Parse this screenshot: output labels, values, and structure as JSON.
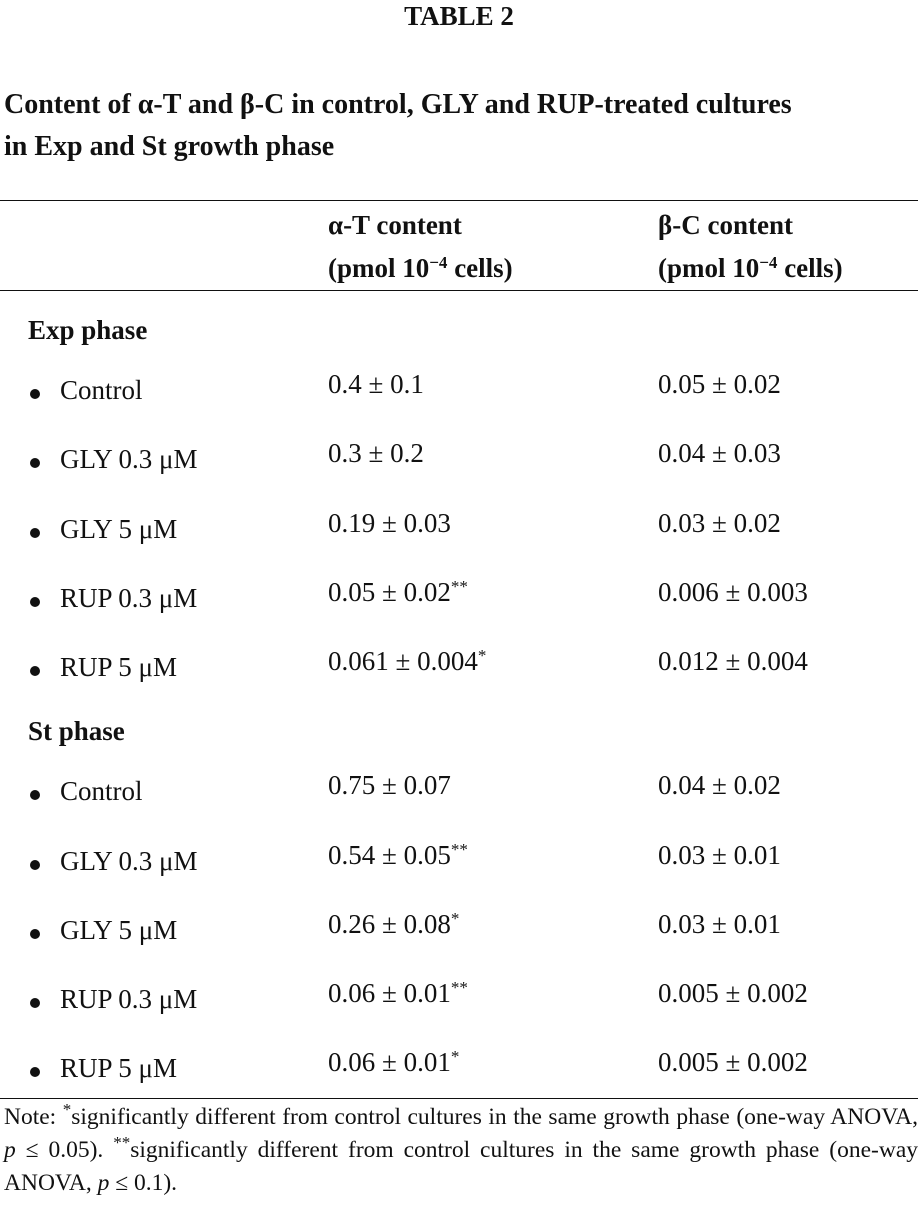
{
  "header": {
    "title": "TABLE 2",
    "caption": [
      "Content of α-T and β-C in control, GLY and RUP-treated cultures",
      "in Exp and St growth phase"
    ]
  },
  "table": {
    "columns": [
      {
        "label": "α-T content",
        "unit_pre": "(pmol 10",
        "unit_sup": "−4",
        "unit_post": " cells)"
      },
      {
        "label": "β-C content",
        "unit_pre": "(pmol 10",
        "unit_sup": "−4",
        "unit_post": " cells)"
      }
    ],
    "sections": [
      {
        "title": "Exp phase",
        "rows": [
          {
            "label": "Control",
            "values": [
              {
                "text": "0.4 ± 0.1"
              },
              {
                "text": "0.05 ± 0.02"
              }
            ]
          },
          {
            "label": "GLY 0.3 μM",
            "values": [
              {
                "text": "0.3 ± 0.2"
              },
              {
                "text": "0.04 ± 0.03"
              }
            ]
          },
          {
            "label": "GLY 5 μM",
            "values": [
              {
                "text": "0.19 ± 0.03"
              },
              {
                "text": "0.03 ± 0.02"
              }
            ]
          },
          {
            "label": "RUP 0.3 μM",
            "values": [
              {
                "text": "0.05 ± 0.02",
                "mark": "**"
              },
              {
                "text": "0.006 ± 0.003"
              }
            ]
          },
          {
            "label": "RUP 5 μM",
            "values": [
              {
                "text": "0.061 ± 0.004",
                "mark": "*"
              },
              {
                "text": "0.012 ± 0.004"
              }
            ]
          }
        ]
      },
      {
        "title": "St phase",
        "rows": [
          {
            "label": "Control",
            "values": [
              {
                "text": "0.75 ± 0.07"
              },
              {
                "text": "0.04 ± 0.02"
              }
            ]
          },
          {
            "label": "GLY 0.3 μM",
            "values": [
              {
                "text": "0.54 ± 0.05",
                "mark": "**"
              },
              {
                "text": "0.03 ± 0.01"
              }
            ]
          },
          {
            "label": "GLY 5 μM",
            "values": [
              {
                "text": "0.26 ± 0.08",
                "mark": "*"
              },
              {
                "text": "0.03 ± 0.01"
              }
            ]
          },
          {
            "label": "RUP 0.3 μM",
            "values": [
              {
                "text": "0.06 ± 0.01",
                "mark": "**"
              },
              {
                "text": "0.005 ± 0.002"
              }
            ]
          },
          {
            "label": "RUP 5 μM",
            "values": [
              {
                "text": "0.06 ± 0.01",
                "mark": "*"
              },
              {
                "text": "0.005 ± 0.002"
              }
            ]
          }
        ]
      }
    ]
  },
  "note": [
    {
      "text": "Note: "
    },
    {
      "text": "*",
      "sup": true
    },
    {
      "text": "significantly different from control cultures in the same growth phase (one-way ANOVA, "
    },
    {
      "text": "p",
      "italic": true
    },
    {
      "text": " ≤ 0.05). "
    },
    {
      "text": "**",
      "sup": true
    },
    {
      "text": "significantly different from control cultures in the same growth phase (one-way ANOVA, "
    },
    {
      "text": "p",
      "italic": true
    },
    {
      "text": " ≤ 0.1)."
    }
  ]
}
